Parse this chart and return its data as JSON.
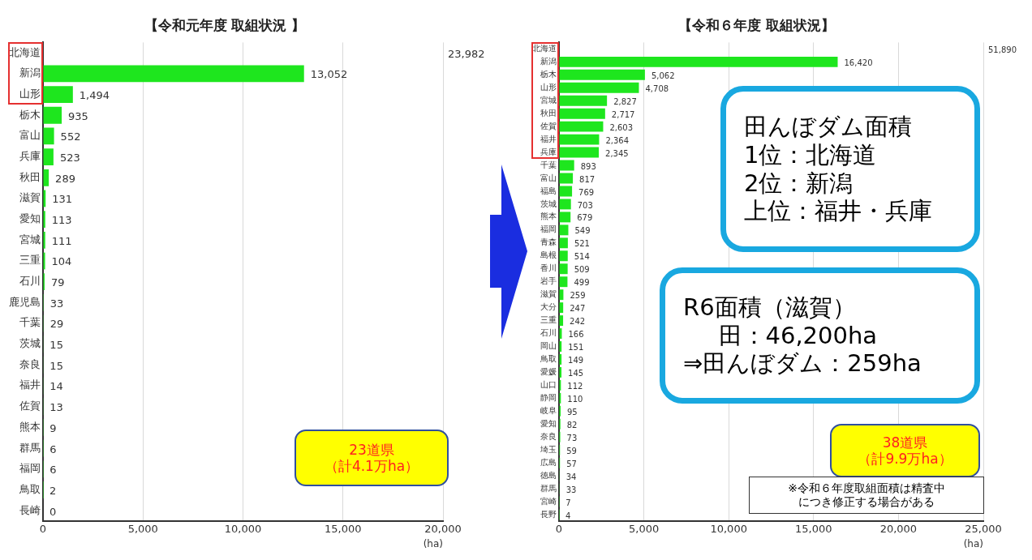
{
  "chart_data": [
    {
      "type": "bar",
      "orientation": "horizontal",
      "title": "【令和元年度 取組状況 】",
      "xlabel": "(ha)",
      "categories": [
        "北海道",
        "新潟",
        "山形",
        "栃木",
        "富山",
        "兵庫",
        "秋田",
        "滋賀",
        "愛知",
        "宮城",
        "三重",
        "石川",
        "鹿児島",
        "千葉",
        "茨城",
        "奈良",
        "福井",
        "佐賀",
        "熊本",
        "群馬",
        "福岡",
        "鳥取",
        "長崎"
      ],
      "values": [
        null,
        13052,
        1494,
        935,
        552,
        523,
        289,
        131,
        113,
        111,
        104,
        79,
        33,
        29,
        15,
        15,
        14,
        13,
        9,
        6,
        6,
        2,
        0
      ],
      "value_labels": [
        "23,982",
        "13,052",
        "1,494",
        "935",
        "552",
        "523",
        "289",
        "131",
        "113",
        "111",
        "104",
        "79",
        "33",
        "29",
        "15",
        "15",
        "14",
        "13",
        "9",
        "6",
        "6",
        "2",
        "0"
      ],
      "color": "#1ee61e",
      "xlim": [
        0,
        20000
      ],
      "xticks": [
        {
          "value": 0,
          "label": "0"
        },
        {
          "value": 5000,
          "label": "5,000"
        },
        {
          "value": 10000,
          "label": "10,000"
        },
        {
          "value": 15000,
          "label": "15,000"
        },
        {
          "value": 20000,
          "label": "20,000"
        }
      ],
      "grid": "x",
      "legend": false,
      "annotations": [
        "23道県",
        "（計4.1万ha）"
      ]
    },
    {
      "type": "bar",
      "orientation": "horizontal",
      "title": "【令和６年度 取組状況】",
      "xlabel": "(ha)",
      "categories": [
        "北海道",
        "新潟",
        "栃木",
        "山形",
        "宮城",
        "秋田",
        "佐賀",
        "福井",
        "兵庫",
        "千葉",
        "富山",
        "福島",
        "茨城",
        "熊本",
        "福岡",
        "青森",
        "島根",
        "香川",
        "岩手",
        "滋賀",
        "大分",
        "三重",
        "石川",
        "岡山",
        "鳥取",
        "愛媛",
        "山口",
        "静岡",
        "岐阜",
        "愛知",
        "奈良",
        "埼玉",
        "広島",
        "徳島",
        "群馬",
        "宮崎",
        "長野"
      ],
      "values": [
        null,
        16420,
        5062,
        4708,
        2827,
        2717,
        2603,
        2364,
        2345,
        893,
        817,
        769,
        703,
        679,
        549,
        521,
        514,
        509,
        499,
        259,
        247,
        242,
        166,
        151,
        149,
        145,
        112,
        110,
        95,
        82,
        73,
        59,
        57,
        34,
        33,
        7,
        4
      ],
      "value_labels": [
        "51,890",
        "16,420",
        "5,062",
        "4,708",
        "2,827",
        "2,717",
        "2,603",
        "2,364",
        "2,345",
        "893",
        "817",
        "769",
        "703",
        "679",
        "549",
        "521",
        "514",
        "509",
        "499",
        "259",
        "247",
        "242",
        "166",
        "151",
        "149",
        "145",
        "112",
        "110",
        "95",
        "82",
        "73",
        "59",
        "57",
        "34",
        "33",
        "7",
        "4"
      ],
      "color": "#1ee61e",
      "xlim": [
        0,
        25000
      ],
      "xticks": [
        {
          "value": 0,
          "label": "0"
        },
        {
          "value": 5000,
          "label": "5,000"
        },
        {
          "value": 10000,
          "label": "10,000"
        },
        {
          "value": 15000,
          "label": "15,000"
        },
        {
          "value": 20000,
          "label": "20,000"
        },
        {
          "value": 25000,
          "label": "25,000"
        }
      ],
      "grid": "x",
      "legend": false,
      "annotations": [
        "田んぼダム面積",
        "1位：北海道",
        "2位：新潟",
        "上位：福井・兵庫",
        "R6面積（滋賀）",
        "田：46,200ha",
        "⇒田んぼダム：259ha",
        "38道県",
        "（計9.9万ha）",
        "※令和６年度取組面積は精査中",
        "につき修正する場合がある"
      ]
    }
  ]
}
